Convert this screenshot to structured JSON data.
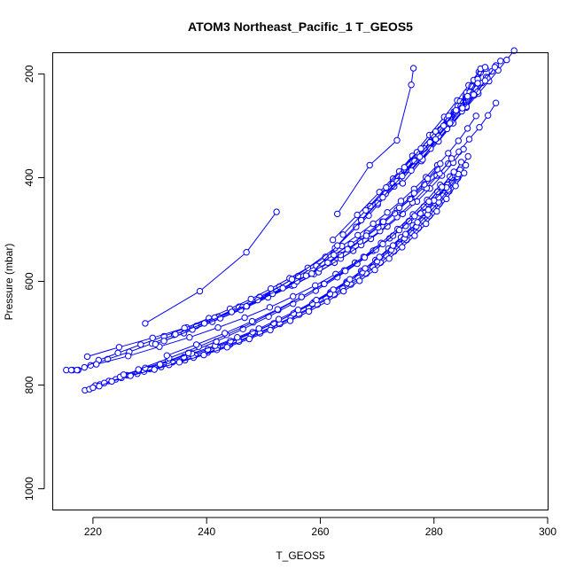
{
  "chart_data": {
    "type": "line",
    "title": "ATOM3 Northeast_Pacific_1 T_GEOS5",
    "xlabel": "T_GEOS5",
    "ylabel": "Pressure (mbar)",
    "xlim": [
      213,
      300
    ],
    "ylim": [
      1040,
      160
    ],
    "y_reversed": true,
    "x_ticks": [
      220,
      240,
      260,
      280,
      300
    ],
    "y_ticks": [
      200,
      400,
      600,
      800,
      1000
    ],
    "marker": "open-circle",
    "color": "#0000ff",
    "series": [
      {
        "x": [
          215.3,
          216.4,
          217.4,
          219.6,
          222.6,
          226.4,
          230.4,
          234.3,
          238.2,
          242.0,
          245.7,
          249.3,
          252.8,
          256.1,
          259.3,
          262.4,
          265.4,
          268.2,
          270.9,
          273.5,
          276.0,
          278.3,
          280.5,
          282.5,
          284.4,
          286.2,
          288.0,
          289.5,
          290.9
        ],
        "y": [
          771,
          771,
          771,
          762,
          750,
          736,
          720,
          703,
          686,
          668,
          649,
          630,
          610,
          590,
          570,
          549,
          528,
          507,
          485,
          463,
          441,
          418,
          396,
          373,
          350,
          326,
          303,
          280,
          256
        ]
      },
      {
        "x": [
          216.2,
          217.2,
          218.5,
          221.0,
          224.4,
          228.4,
          232.5,
          236.5,
          240.4,
          244.1,
          247.8,
          251.3,
          254.6,
          257.8,
          260.9,
          263.8,
          266.6,
          269.3,
          271.8,
          274.2,
          276.5,
          278.6,
          280.6,
          282.5,
          284.3,
          285.9,
          287.4
        ],
        "y": [
          771,
          771,
          766,
          752,
          738,
          722,
          706,
          689,
          671,
          653,
          634,
          614,
          594,
          574,
          553,
          532,
          511,
          489,
          467,
          445,
          422,
          399,
          376,
          353,
          329,
          305,
          281
        ]
      },
      {
        "x": [
          218.6,
          220.4,
          222.8,
          226.0,
          230.0,
          234.0,
          238.0,
          241.9,
          245.6,
          249.2,
          252.6,
          255.8,
          258.9,
          261.8,
          264.6,
          267.2,
          269.7,
          272.0,
          274.2,
          276.3,
          278.3,
          280.1,
          281.8,
          283.4,
          284.8
        ],
        "y": [
          810,
          801,
          792,
          781,
          769,
          756,
          742,
          727,
          711,
          694,
          677,
          659,
          640,
          621,
          601,
          580,
          559,
          537,
          515,
          492,
          468,
          444,
          420,
          395,
          370
        ]
      },
      {
        "x": [
          219.4,
          221.2,
          224.0,
          227.8,
          232.0,
          236.2,
          240.2,
          244.1,
          247.8,
          251.4,
          254.8,
          258.0,
          261.0,
          263.9,
          266.6,
          269.2,
          271.6,
          273.9,
          276.0,
          278.0,
          279.9,
          281.6,
          283.2,
          284.6,
          286.0
        ],
        "y": [
          808,
          799,
          789,
          778,
          765,
          752,
          737,
          722,
          705,
          688,
          670,
          652,
          633,
          613,
          593,
          572,
          550,
          528,
          506,
          483,
          459,
          435,
          410,
          385,
          359
        ]
      },
      {
        "x": [
          220.0,
          222.0,
          225.0,
          229.0,
          233.4,
          237.7,
          241.8,
          245.7,
          249.4,
          252.9,
          256.3,
          259.5,
          262.5,
          265.4,
          268.1,
          270.6,
          273.0,
          275.2,
          277.3,
          279.2,
          281.0,
          282.7,
          284.2,
          285.6
        ],
        "y": [
          805,
          796,
          786,
          774,
          761,
          747,
          732,
          716,
          700,
          682,
          664,
          645,
          626,
          606,
          585,
          564,
          542,
          520,
          497,
          474,
          450,
          426,
          401,
          376
        ]
      },
      {
        "x": [
          221.1,
          223.3,
          226.6,
          230.8,
          235.2,
          239.5,
          243.6,
          247.5,
          251.2,
          254.7,
          258.0,
          261.2,
          264.1,
          266.9,
          269.6,
          272.1,
          274.4,
          276.6,
          278.6,
          280.5,
          282.2,
          283.8,
          285.3
        ],
        "y": [
          802,
          793,
          782,
          770,
          756,
          742,
          727,
          711,
          694,
          676,
          658,
          639,
          619,
          599,
          578,
          556,
          534,
          512,
          489,
          465,
          441,
          416,
          391
        ]
      },
      {
        "x": [
          224.8,
          228.0,
          231.8,
          236.0,
          240.2,
          244.2,
          248.1,
          251.8,
          255.3,
          258.6,
          261.7,
          264.7,
          267.4,
          270.0,
          272.5,
          274.8,
          276.9,
          278.9,
          280.8,
          282.5,
          284.1
        ],
        "y": [
          784,
          772,
          760,
          746,
          731,
          715,
          698,
          681,
          662,
          643,
          624,
          603,
          582,
          561,
          539,
          517,
          494,
          471,
          447,
          423,
          398
        ]
      },
      {
        "x": [
          225.4,
          229.2,
          233.2,
          237.4,
          241.5,
          245.4,
          249.2,
          252.7,
          256.1,
          259.3,
          262.3,
          265.2,
          267.9,
          270.4,
          272.8,
          275.0,
          277.1,
          279.0,
          280.8,
          282.4
        ],
        "y": [
          780,
          767,
          753,
          739,
          724,
          708,
          691,
          673,
          655,
          636,
          616,
          596,
          575,
          553,
          531,
          509,
          486,
          462,
          438,
          414
        ]
      },
      {
        "x": [
          219.0,
          224.6,
          230.5,
          236.1,
          241.4,
          246.3,
          250.8,
          255.0,
          258.9,
          262.5,
          265.8,
          268.9,
          271.8,
          274.5,
          277.0,
          279.3,
          281.4,
          283.4,
          285.2
        ],
        "y": [
          745,
          727,
          709,
          690,
          670,
          650,
          629,
          608,
          586,
          564,
          541,
          518,
          494,
          470,
          446,
          421,
          396,
          371,
          345
        ]
      },
      {
        "x": [
          220.6,
          226.2,
          231.7,
          237.0,
          242.0,
          246.7,
          251.1,
          255.2,
          259.1,
          262.7,
          266.1,
          269.3,
          272.2,
          275.0,
          277.6,
          280.0,
          282.2,
          284.3
        ],
        "y": [
          760,
          744,
          726,
          708,
          689,
          670,
          650,
          629,
          608,
          586,
          564,
          541,
          517,
          493,
          469,
          444,
          419,
          393
        ]
      },
      {
        "x": [
          229.2,
          238.8,
          247.0,
          252.3
        ],
        "y": [
          681,
          619,
          544,
          466
        ]
      },
      {
        "x": [
          231.0,
          236.0,
          241.0,
          246.0,
          250.8,
          255.4,
          259.7,
          263.6,
          267.2,
          270.5,
          273.5,
          276.2,
          278.7,
          281.0,
          283.1
        ],
        "y": [
          721,
          700,
          678,
          655,
          631,
          607,
          582,
          556,
          530,
          503,
          476,
          448,
          420,
          392,
          363
        ]
      },
      {
        "x": [
          232.5,
          237.5,
          242.4,
          247.1,
          251.6,
          255.9,
          259.9,
          263.6,
          267.0,
          270.2,
          273.1,
          275.8,
          278.3,
          280.6
        ],
        "y": [
          715,
          693,
          671,
          648,
          624,
          600,
          575,
          549,
          523,
          496,
          469,
          441,
          413,
          384
        ]
      },
      {
        "x": [
          234.5,
          239.6,
          244.4,
          249.0,
          253.4,
          257.5,
          261.3,
          264.8,
          268.1,
          271.1,
          273.9,
          276.5,
          278.9,
          281.1
        ],
        "y": [
          702,
          681,
          659,
          636,
          613,
          589,
          564,
          538,
          512,
          485,
          458,
          430,
          402,
          373
        ]
      },
      {
        "x": [
          231.8,
          236.8,
          241.7,
          246.4,
          250.9,
          255.2,
          259.2,
          263.0,
          266.5,
          269.8,
          272.8,
          275.6,
          278.2,
          280.6,
          282.8
        ],
        "y": [
          760,
          738,
          716,
          692,
          668,
          643,
          618,
          592,
          566,
          539,
          512,
          484,
          456,
          427,
          398
        ]
      },
      {
        "x": [
          228.0,
          233.4,
          238.6,
          243.5,
          248.2,
          252.6,
          256.7,
          260.6,
          264.2,
          267.6,
          270.7,
          273.6,
          276.3,
          278.8,
          281.1
        ],
        "y": [
          770,
          748,
          726,
          703,
          679,
          655,
          630,
          605,
          579,
          553,
          526,
          499,
          471,
          443,
          414
        ]
      },
      {
        "x": [
          233.0,
          238.2,
          243.2,
          248.0,
          252.5,
          256.7,
          260.7,
          264.4,
          267.8,
          271.0,
          273.9,
          276.6,
          279.1,
          281.4,
          283.5
        ],
        "y": [
          743,
          722,
          700,
          677,
          654,
          630,
          605,
          580,
          554,
          528,
          501,
          474,
          446,
          418,
          389
        ]
      },
      {
        "x": [
          247.0,
          255.0,
          262.6,
          268.5,
          273.0,
          276.8,
          280.0,
          282.8,
          285.2,
          287.3,
          289.2,
          290.8
        ],
        "y": [
          648,
          596,
          536,
          473,
          417,
          367,
          323,
          286,
          255,
          228,
          206,
          188
        ]
      },
      {
        "x": [
          263.0,
          268.7,
          273.5,
          276.0,
          276.4
        ],
        "y": [
          470,
          376,
          328,
          221,
          189
        ]
      },
      {
        "x": [
          268.8,
          272.8,
          276.3,
          279.4,
          282.1,
          284.5,
          286.6,
          288.5,
          290.2,
          291.7
        ],
        "y": [
          455,
          410,
          369,
          332,
          298,
          268,
          241,
          217,
          195,
          175
        ]
      },
      {
        "x": [
          270.1,
          274.0,
          277.5,
          280.6,
          283.3,
          285.7,
          287.8,
          289.7,
          291.3,
          292.8,
          294.1
        ],
        "y": [
          452,
          407,
          366,
          329,
          295,
          265,
          238,
          214,
          193,
          173,
          155
        ]
      },
      {
        "x": [
          274.5,
          277.8,
          280.8,
          283.4,
          285.7,
          287.7,
          289.4,
          290.9
        ],
        "y": [
          411,
          368,
          330,
          295,
          263,
          234,
          208,
          184
        ]
      },
      {
        "x": [
          276.0,
          279.4,
          282.3,
          284.9,
          287.1,
          289.0,
          290.7
        ],
        "y": [
          386,
          344,
          306,
          272,
          241,
          213,
          187
        ]
      },
      {
        "x": [
          271.5,
          275.1,
          278.3,
          281.1,
          283.5,
          285.6,
          287.5,
          289.1
        ],
        "y": [
          431,
          385,
          344,
          307,
          273,
          243,
          215,
          190
        ]
      },
      {
        "x": [
          272.8,
          276.2,
          279.2,
          281.8,
          284.1,
          286.1,
          287.9
        ],
        "y": [
          402,
          358,
          318,
          283,
          251,
          222,
          196
        ]
      },
      {
        "x": [
          278.0,
          280.5,
          282.8,
          284.8,
          286.6,
          288.2
        ],
        "y": [
          365,
          324,
          287,
          254,
          224,
          197
        ]
      },
      {
        "x": [
          262.2,
          266.5,
          270.4,
          273.9,
          277.0,
          279.8,
          282.3,
          284.5,
          286.5
        ],
        "y": [
          520,
          472,
          428,
          388,
          351,
          318,
          287,
          259,
          234
        ]
      },
      {
        "x": [
          264.0,
          268.0,
          271.6,
          274.8,
          277.7,
          280.3,
          282.6,
          284.6
        ],
        "y": [
          510,
          463,
          419,
          380,
          344,
          311,
          281,
          253
        ]
      },
      {
        "x": [
          280.8,
          282.6,
          284.2,
          285.7,
          287.0,
          288.2
        ],
        "y": [
          320,
          290,
          262,
          236,
          212,
          190
        ]
      },
      {
        "x": [
          283.0,
          284.7,
          286.3,
          287.7,
          289.0
        ],
        "y": [
          292,
          262,
          235,
          210,
          187
        ]
      },
      {
        "x": [
          266.3,
          270.1,
          273.5,
          276.6,
          279.3,
          281.7,
          283.9,
          285.9,
          287.7
        ],
        "y": [
          495,
          449,
          407,
          368,
          332,
          300,
          270,
          243,
          218
        ]
      },
      {
        "x": [
          258.5,
          263.0,
          267.2,
          271.0,
          274.4,
          277.5,
          280.3,
          282.8,
          285.0,
          287.0
        ],
        "y": [
          585,
          531,
          482,
          438,
          397,
          360,
          326,
          295,
          266,
          240
        ]
      }
    ]
  }
}
